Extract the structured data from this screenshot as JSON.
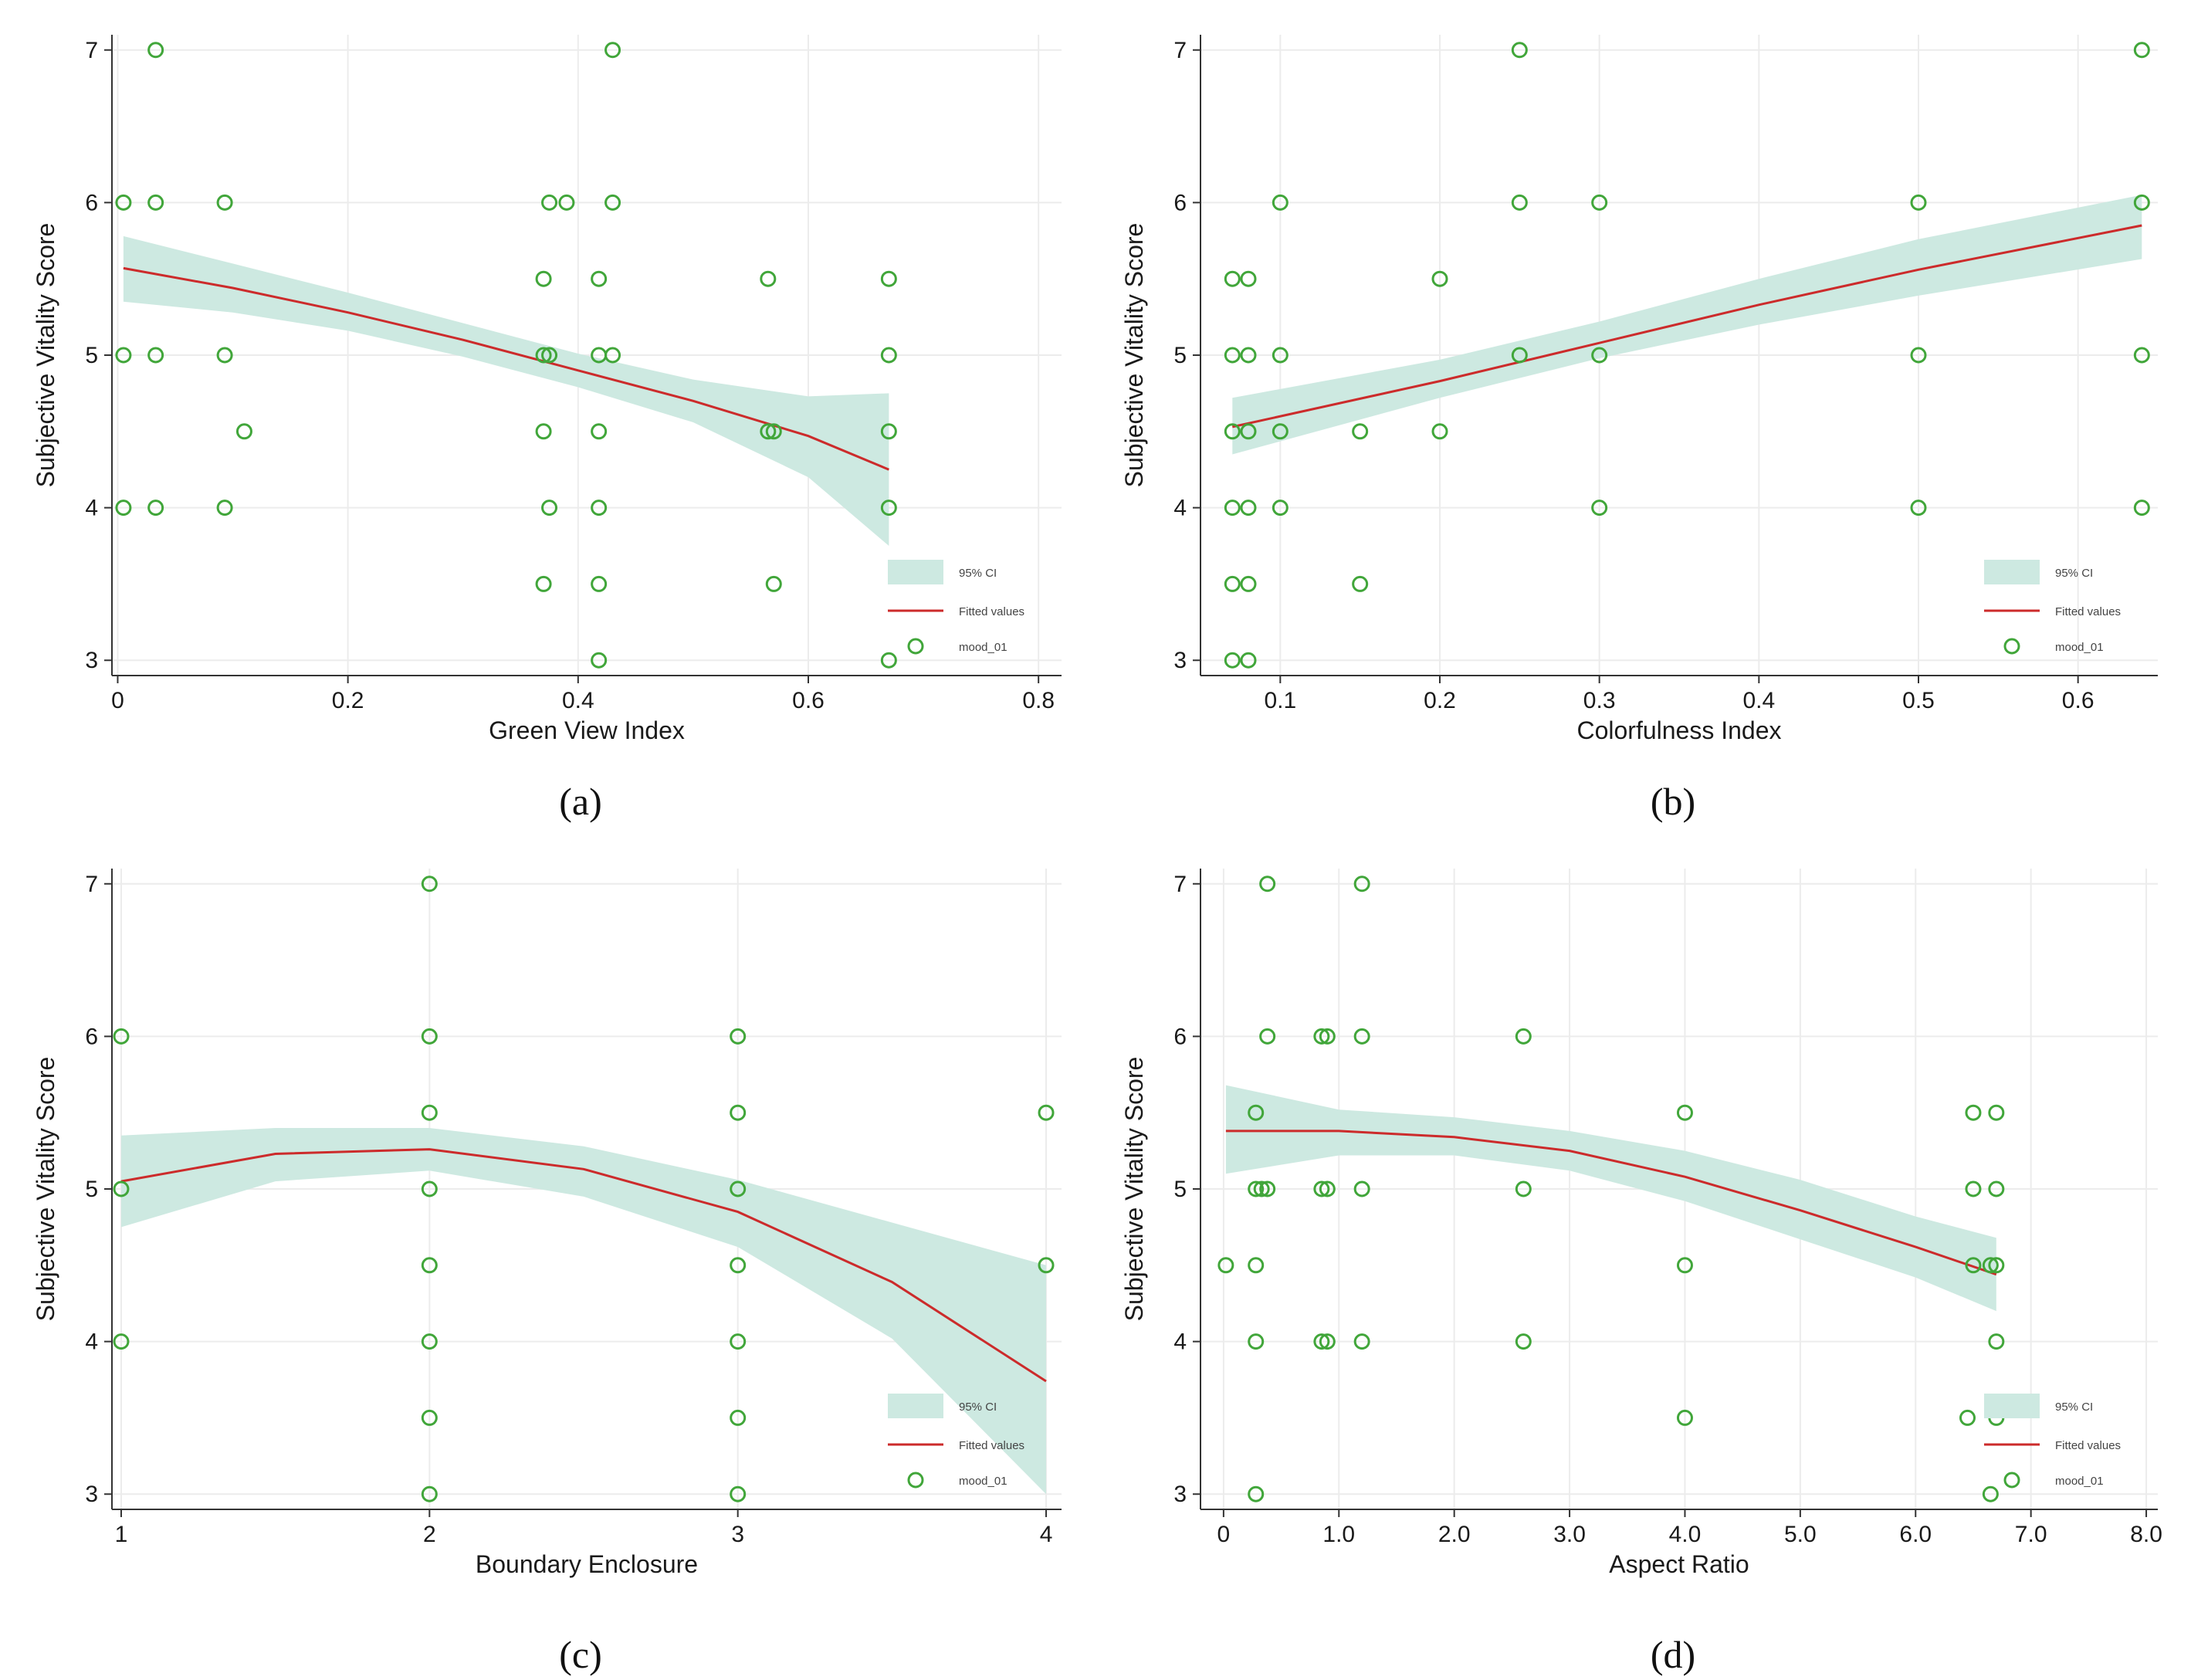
{
  "colors": {
    "ci": "#cde9e1",
    "fit": "#cc2b2b",
    "marker": "#41a63a",
    "grid": "#ececec",
    "axis": "#333333"
  },
  "chart_data": [
    {
      "type": "scatter",
      "caption": "(a)",
      "xlabel": "Green View Index",
      "ylabel": "Subjective Vitality Score",
      "xlim": [
        -0.005,
        0.82
      ],
      "ylim": [
        2.9,
        7.1
      ],
      "xticks": [
        0,
        0.2,
        0.4,
        0.6,
        0.8
      ],
      "xtick_labels": [
        "0",
        "0.2",
        "0.4",
        "0.6",
        "0.8"
      ],
      "yticks": [
        3,
        4,
        5,
        6,
        7
      ],
      "ytick_labels": [
        "3",
        "4",
        "5",
        "6",
        "7"
      ],
      "legend": [
        "95% CI",
        "Fitted values",
        "mood_01"
      ],
      "legend_position": "bottom-right",
      "fit": {
        "x": [
          0.005,
          0.1,
          0.2,
          0.3,
          0.4,
          0.5,
          0.6,
          0.67
        ],
        "y": [
          5.57,
          5.44,
          5.28,
          5.1,
          4.9,
          4.7,
          4.47,
          4.25
        ],
        "lo": [
          5.35,
          5.28,
          5.16,
          4.99,
          4.79,
          4.56,
          4.2,
          3.75
        ],
        "hi": [
          5.78,
          5.6,
          5.41,
          5.21,
          5.01,
          4.84,
          4.73,
          4.75
        ]
      },
      "points": [
        {
          "x": 0.033,
          "y": 7
        },
        {
          "x": 0.43,
          "y": 7
        },
        {
          "x": 0.005,
          "y": 6
        },
        {
          "x": 0.033,
          "y": 6
        },
        {
          "x": 0.093,
          "y": 6
        },
        {
          "x": 0.375,
          "y": 6
        },
        {
          "x": 0.39,
          "y": 6
        },
        {
          "x": 0.43,
          "y": 6
        },
        {
          "x": 0.37,
          "y": 5.5
        },
        {
          "x": 0.418,
          "y": 5.5
        },
        {
          "x": 0.565,
          "y": 5.5
        },
        {
          "x": 0.67,
          "y": 5.5
        },
        {
          "x": 0.005,
          "y": 5
        },
        {
          "x": 0.033,
          "y": 5
        },
        {
          "x": 0.093,
          "y": 5
        },
        {
          "x": 0.37,
          "y": 5
        },
        {
          "x": 0.375,
          "y": 5
        },
        {
          "x": 0.418,
          "y": 5
        },
        {
          "x": 0.43,
          "y": 5
        },
        {
          "x": 0.67,
          "y": 5
        },
        {
          "x": 0.11,
          "y": 4.5
        },
        {
          "x": 0.37,
          "y": 4.5
        },
        {
          "x": 0.418,
          "y": 4.5
        },
        {
          "x": 0.565,
          "y": 4.5
        },
        {
          "x": 0.57,
          "y": 4.5
        },
        {
          "x": 0.67,
          "y": 4.5
        },
        {
          "x": 0.005,
          "y": 4
        },
        {
          "x": 0.033,
          "y": 4
        },
        {
          "x": 0.093,
          "y": 4
        },
        {
          "x": 0.375,
          "y": 4
        },
        {
          "x": 0.418,
          "y": 4
        },
        {
          "x": 0.67,
          "y": 4
        },
        {
          "x": 0.37,
          "y": 3.5
        },
        {
          "x": 0.418,
          "y": 3.5
        },
        {
          "x": 0.57,
          "y": 3.5
        },
        {
          "x": 0.418,
          "y": 3
        },
        {
          "x": 0.67,
          "y": 3
        }
      ]
    },
    {
      "type": "scatter",
      "caption": "(b)",
      "xlabel": "Colorfulness Index",
      "ylabel": "Subjective Vitality Score",
      "xlim": [
        0.05,
        0.65
      ],
      "ylim": [
        2.9,
        7.1
      ],
      "xticks": [
        0.1,
        0.2,
        0.3,
        0.4,
        0.5,
        0.6
      ],
      "xtick_labels": [
        "0.1",
        "0.2",
        "0.3",
        "0.4",
        "0.5",
        "0.6"
      ],
      "yticks": [
        3,
        4,
        5,
        6,
        7
      ],
      "ytick_labels": [
        "3",
        "4",
        "5",
        "6",
        "7"
      ],
      "legend": [
        "95% CI",
        "Fitted values",
        "mood_01"
      ],
      "legend_position": "bottom-right",
      "fit": {
        "x": [
          0.07,
          0.2,
          0.3,
          0.4,
          0.5,
          0.64
        ],
        "y": [
          4.53,
          4.83,
          5.08,
          5.33,
          5.56,
          5.85
        ],
        "lo": [
          4.35,
          4.72,
          4.98,
          5.2,
          5.39,
          5.63
        ],
        "hi": [
          4.72,
          4.97,
          5.22,
          5.5,
          5.76,
          6.05
        ]
      },
      "points": [
        {
          "x": 0.25,
          "y": 7
        },
        {
          "x": 0.64,
          "y": 7
        },
        {
          "x": 0.1,
          "y": 6
        },
        {
          "x": 0.25,
          "y": 6
        },
        {
          "x": 0.3,
          "y": 6
        },
        {
          "x": 0.5,
          "y": 6
        },
        {
          "x": 0.64,
          "y": 6
        },
        {
          "x": 0.07,
          "y": 5.5
        },
        {
          "x": 0.08,
          "y": 5.5
        },
        {
          "x": 0.2,
          "y": 5.5
        },
        {
          "x": 0.07,
          "y": 5
        },
        {
          "x": 0.08,
          "y": 5
        },
        {
          "x": 0.1,
          "y": 5
        },
        {
          "x": 0.25,
          "y": 5
        },
        {
          "x": 0.3,
          "y": 5
        },
        {
          "x": 0.5,
          "y": 5
        },
        {
          "x": 0.64,
          "y": 5
        },
        {
          "x": 0.07,
          "y": 4.5
        },
        {
          "x": 0.08,
          "y": 4.5
        },
        {
          "x": 0.1,
          "y": 4.5
        },
        {
          "x": 0.15,
          "y": 4.5
        },
        {
          "x": 0.2,
          "y": 4.5
        },
        {
          "x": 0.07,
          "y": 4
        },
        {
          "x": 0.08,
          "y": 4
        },
        {
          "x": 0.1,
          "y": 4
        },
        {
          "x": 0.3,
          "y": 4
        },
        {
          "x": 0.5,
          "y": 4
        },
        {
          "x": 0.64,
          "y": 4
        },
        {
          "x": 0.07,
          "y": 3.5
        },
        {
          "x": 0.08,
          "y": 3.5
        },
        {
          "x": 0.15,
          "y": 3.5
        },
        {
          "x": 0.07,
          "y": 3
        },
        {
          "x": 0.08,
          "y": 3
        }
      ]
    },
    {
      "type": "scatter",
      "caption": "(c)",
      "xlabel": "Boundary Enclosure",
      "ylabel": "Subjective Vitality Score",
      "xlim": [
        0.97,
        4.05
      ],
      "ylim": [
        2.9,
        7.1
      ],
      "xticks": [
        1,
        2,
        3,
        4
      ],
      "xtick_labels": [
        "1",
        "2",
        "3",
        "4"
      ],
      "yticks": [
        3,
        4,
        5,
        6,
        7
      ],
      "ytick_labels": [
        "3",
        "4",
        "5",
        "6",
        "7"
      ],
      "legend": [
        "95% CI",
        "Fitted values",
        "mood_01"
      ],
      "legend_position": "bottom-right",
      "fit": {
        "x": [
          1,
          1.5,
          2,
          2.5,
          3,
          3.5,
          4
        ],
        "y": [
          5.05,
          5.23,
          5.26,
          5.13,
          4.85,
          4.39,
          3.74
        ],
        "lo": [
          4.75,
          5.05,
          5.12,
          4.95,
          4.62,
          4.02,
          3.0
        ],
        "hi": [
          5.35,
          5.4,
          5.4,
          5.28,
          5.06,
          4.78,
          4.5
        ]
      },
      "points": [
        {
          "x": 2,
          "y": 7
        },
        {
          "x": 1,
          "y": 6
        },
        {
          "x": 2,
          "y": 6
        },
        {
          "x": 3,
          "y": 6
        },
        {
          "x": 2,
          "y": 5.5
        },
        {
          "x": 3,
          "y": 5.5
        },
        {
          "x": 4,
          "y": 5.5
        },
        {
          "x": 1,
          "y": 5
        },
        {
          "x": 2,
          "y": 5
        },
        {
          "x": 3,
          "y": 5
        },
        {
          "x": 2,
          "y": 4.5
        },
        {
          "x": 3,
          "y": 4.5
        },
        {
          "x": 4,
          "y": 4.5
        },
        {
          "x": 1,
          "y": 4
        },
        {
          "x": 2,
          "y": 4
        },
        {
          "x": 3,
          "y": 4
        },
        {
          "x": 2,
          "y": 3.5
        },
        {
          "x": 3,
          "y": 3.5
        },
        {
          "x": 2,
          "y": 3
        },
        {
          "x": 3,
          "y": 3
        }
      ]
    },
    {
      "type": "scatter",
      "caption": "(d)",
      "xlabel": "Aspect Ratio",
      "ylabel": "Subjective Vitality Score",
      "xlim": [
        -0.2,
        8.1
      ],
      "ylim": [
        2.9,
        7.1
      ],
      "xticks": [
        0,
        1,
        2,
        3,
        4,
        5,
        6,
        7,
        8
      ],
      "xtick_labels": [
        "0",
        "1.0",
        "2.0",
        "3.0",
        "4.0",
        "5.0",
        "6.0",
        "7.0",
        "8.0"
      ],
      "yticks": [
        3,
        4,
        5,
        6,
        7
      ],
      "ytick_labels": [
        "3",
        "4",
        "5",
        "6",
        "7"
      ],
      "legend": [
        "95% CI",
        "Fitted values",
        "mood_01"
      ],
      "legend_position": "bottom-right",
      "fit": {
        "x": [
          0.02,
          1,
          2,
          3,
          4,
          5,
          6,
          6.7
        ],
        "y": [
          5.38,
          5.38,
          5.34,
          5.25,
          5.08,
          4.86,
          4.62,
          4.44
        ],
        "lo": [
          5.1,
          5.22,
          5.22,
          5.12,
          4.92,
          4.67,
          4.42,
          4.2
        ],
        "hi": [
          5.68,
          5.52,
          5.47,
          5.38,
          5.25,
          5.06,
          4.82,
          4.68
        ]
      },
      "points": [
        {
          "x": 0.38,
          "y": 7
        },
        {
          "x": 1.2,
          "y": 7
        },
        {
          "x": 0.38,
          "y": 6
        },
        {
          "x": 0.85,
          "y": 6
        },
        {
          "x": 0.9,
          "y": 6
        },
        {
          "x": 1.2,
          "y": 6
        },
        {
          "x": 2.6,
          "y": 6
        },
        {
          "x": 0.28,
          "y": 5.5
        },
        {
          "x": 4.0,
          "y": 5.5
        },
        {
          "x": 6.5,
          "y": 5.5
        },
        {
          "x": 6.7,
          "y": 5.5
        },
        {
          "x": 0.28,
          "y": 5
        },
        {
          "x": 0.33,
          "y": 5
        },
        {
          "x": 0.38,
          "y": 5
        },
        {
          "x": 0.85,
          "y": 5
        },
        {
          "x": 0.9,
          "y": 5
        },
        {
          "x": 1.2,
          "y": 5
        },
        {
          "x": 2.6,
          "y": 5
        },
        {
          "x": 6.5,
          "y": 5
        },
        {
          "x": 6.7,
          "y": 5
        },
        {
          "x": 0.02,
          "y": 4.5
        },
        {
          "x": 0.28,
          "y": 4.5
        },
        {
          "x": 4.0,
          "y": 4.5
        },
        {
          "x": 6.5,
          "y": 4.5
        },
        {
          "x": 6.65,
          "y": 4.5
        },
        {
          "x": 6.7,
          "y": 4.5
        },
        {
          "x": 0.28,
          "y": 4
        },
        {
          "x": 0.85,
          "y": 4
        },
        {
          "x": 0.9,
          "y": 4
        },
        {
          "x": 1.2,
          "y": 4
        },
        {
          "x": 2.6,
          "y": 4
        },
        {
          "x": 6.7,
          "y": 4
        },
        {
          "x": 4.0,
          "y": 3.5
        },
        {
          "x": 6.45,
          "y": 3.5
        },
        {
          "x": 6.7,
          "y": 3.5
        },
        {
          "x": 0.28,
          "y": 3
        },
        {
          "x": 6.65,
          "y": 3
        }
      ]
    }
  ]
}
